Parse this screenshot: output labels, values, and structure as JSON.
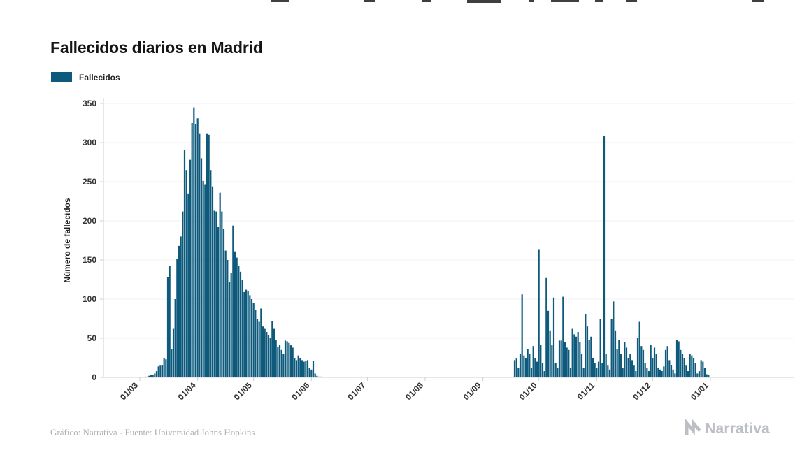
{
  "page": {
    "title": "Fallecidos diarios en Madrid"
  },
  "legend": {
    "label": "Fallecidos"
  },
  "footer": {
    "credit": "Gráfico: Narrativa - Fuente: Universidad Johns Hopkins",
    "brand": "Narrativa"
  },
  "colors": {
    "bar": "#0e5a7d",
    "axis": "#cfcfcf",
    "grid": "#f0f0f0",
    "brand_gray": "#bcbfc3"
  },
  "chart_data": {
    "type": "bar",
    "title": "Fallecidos diarios en Madrid",
    "series_name": "Fallecidos",
    "xlabel": "",
    "ylabel": "Número de fallecidos",
    "ylim": [
      0,
      350
    ],
    "yticks": [
      0,
      50,
      100,
      150,
      200,
      250,
      300,
      350
    ],
    "grid": "horizontal-faint",
    "legend_position": "top-left",
    "x_unit": "day",
    "x_start": "01/03",
    "xtick_labels": [
      "01/03",
      "01/04",
      "01/05",
      "01/06",
      "01/07",
      "01/08",
      "01/09",
      "01/10",
      "01/11",
      "01/12",
      "01/01"
    ],
    "xtick_day_index": [
      0,
      31,
      61,
      92,
      122,
      153,
      184,
      214,
      245,
      275,
      306
    ],
    "bar_color": "#0e5a7d",
    "values": [
      0,
      0,
      0,
      1,
      1,
      2,
      3,
      3,
      5,
      8,
      14,
      15,
      16,
      25,
      23,
      128,
      142,
      36,
      62,
      100,
      151,
      168,
      180,
      212,
      291,
      265,
      235,
      278,
      325,
      345,
      324,
      331,
      311,
      280,
      251,
      246,
      311,
      310,
      265,
      244,
      213,
      212,
      192,
      236,
      212,
      190,
      162,
      150,
      122,
      133,
      194,
      161,
      153,
      142,
      135,
      125,
      109,
      112,
      110,
      105,
      100,
      95,
      86,
      75,
      71,
      88,
      65,
      62,
      58,
      54,
      50,
      72,
      62,
      48,
      39,
      42,
      35,
      30,
      47,
      46,
      44,
      41,
      38,
      25,
      22,
      28,
      25,
      22,
      20,
      21,
      22,
      12,
      10,
      21,
      5,
      2,
      1,
      1,
      0,
      0,
      0,
      0,
      0,
      0,
      0,
      0,
      0,
      0,
      0,
      0,
      0,
      0,
      0,
      0,
      0,
      0,
      0,
      0,
      0,
      0,
      0,
      0,
      0,
      0,
      0,
      0,
      0,
      0,
      0,
      0,
      0,
      0,
      0,
      0,
      0,
      0,
      0,
      0,
      0,
      0,
      0,
      0,
      0,
      0,
      0,
      0,
      0,
      0,
      0,
      0,
      0,
      0,
      0,
      0,
      0,
      0,
      0,
      0,
      0,
      0,
      0,
      0,
      0,
      0,
      0,
      0,
      0,
      0,
      0,
      0,
      0,
      0,
      0,
      0,
      0,
      0,
      0,
      0,
      0,
      0,
      0,
      0,
      0,
      0,
      0,
      0,
      0,
      0,
      0,
      0,
      0,
      0,
      0,
      0,
      0,
      0,
      0,
      0,
      0,
      0,
      0,
      22,
      24,
      12,
      30,
      106,
      28,
      25,
      36,
      30,
      12,
      40,
      25,
      20,
      163,
      42,
      18,
      8,
      127,
      85,
      60,
      41,
      102,
      18,
      12,
      47,
      47,
      103,
      45,
      38,
      35,
      12,
      62,
      55,
      52,
      58,
      45,
      30,
      12,
      81,
      65,
      48,
      52,
      25,
      18,
      12,
      20,
      75,
      18,
      308,
      30,
      15,
      10,
      75,
      97,
      60,
      36,
      48,
      30,
      12,
      45,
      38,
      25,
      30,
      22,
      15,
      8,
      50,
      71,
      40,
      35,
      18,
      12,
      8,
      42,
      25,
      38,
      30,
      12,
      10,
      8,
      14,
      35,
      40,
      22,
      16,
      10,
      5,
      48,
      46,
      35,
      30,
      25,
      15,
      8,
      30,
      28,
      25,
      18,
      5,
      8,
      22,
      20,
      12,
      4,
      3
    ]
  }
}
